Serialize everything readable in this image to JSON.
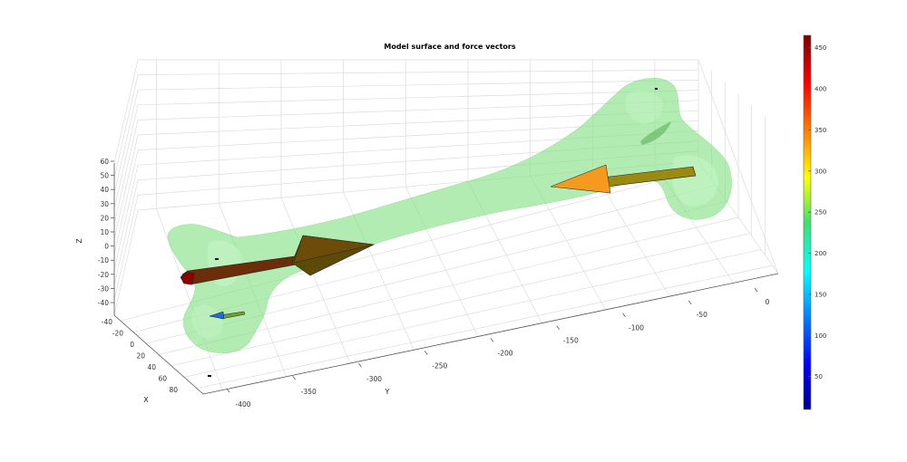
{
  "chart_data": {
    "type": "3d-surface-with-vectors",
    "title": "Model surface and force vectors",
    "axes": {
      "x": {
        "label": "X",
        "ticks": [
          -40,
          -20,
          0,
          20,
          40,
          60,
          80
        ]
      },
      "y": {
        "label": "Y",
        "ticks": [
          -400,
          -350,
          -300,
          -250,
          -200,
          -150,
          -100,
          -50,
          0
        ]
      },
      "z": {
        "label": "Z",
        "ticks": [
          60,
          50,
          40,
          30,
          20,
          10,
          0,
          -10,
          -20,
          -30,
          -40
        ]
      }
    },
    "grid": true,
    "surface": {
      "description_visible": false,
      "color": "#7fe07f",
      "opacity": 0.6
    },
    "vectors": [
      {
        "color_value": 460,
        "color": "#8b0000"
      },
      {
        "color_value": 330,
        "color": "#f39a1f"
      },
      {
        "color_value": 150,
        "color": "#1e6ae0"
      }
    ],
    "colorbar": {
      "ticks": [
        450,
        400,
        350,
        300,
        250,
        200,
        150,
        100,
        50
      ],
      "range": [
        10,
        465
      ],
      "colormap": "jet"
    }
  }
}
